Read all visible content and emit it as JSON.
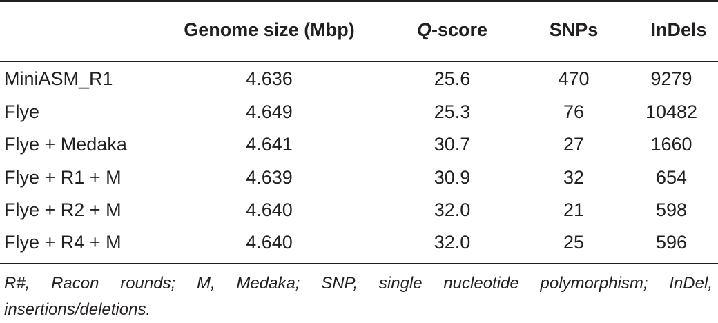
{
  "table": {
    "headers": {
      "assembly": "",
      "genome_size": "Genome size (Mbp)",
      "q_letter": "Q",
      "q_rest": "-score",
      "snps": "SNPs",
      "indels": "InDels"
    },
    "rows": [
      {
        "assembly": "MiniASM_R1",
        "genome_size": "4.636",
        "q_score": "25.6",
        "snps": "470",
        "indels": "9279"
      },
      {
        "assembly": "Flye",
        "genome_size": "4.649",
        "q_score": "25.3",
        "snps": "76",
        "indels": "10482"
      },
      {
        "assembly": "Flye + Medaka",
        "genome_size": "4.641",
        "q_score": "30.7",
        "snps": "27",
        "indels": "1660"
      },
      {
        "assembly": "Flye + R1 + M",
        "genome_size": "4.639",
        "q_score": "30.9",
        "snps": "32",
        "indels": "654"
      },
      {
        "assembly": "Flye + R2 + M",
        "genome_size": "4.640",
        "q_score": "32.0",
        "snps": "21",
        "indels": "598"
      },
      {
        "assembly": "Flye + R4 + M",
        "genome_size": "4.640",
        "q_score": "32.0",
        "snps": "25",
        "indels": "596"
      }
    ],
    "footnote": "R#, Racon rounds; M, Medaka; SNP, single nucleotide polymorphism; InDel, insertions/deletions."
  }
}
